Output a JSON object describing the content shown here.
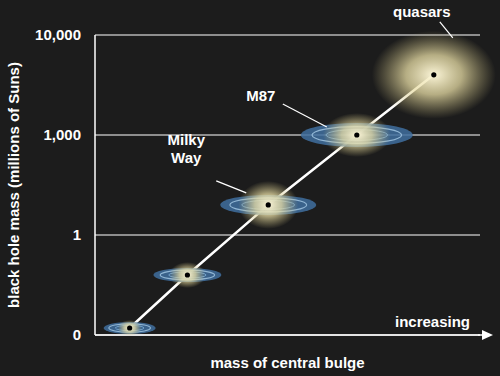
{
  "chart_data": {
    "type": "line",
    "x_label": "mass of central bulge",
    "y_label": "black hole mass (millions of Suns)",
    "annotations": [
      {
        "text": "increasing"
      }
    ],
    "x": [
      9,
      24,
      45,
      68,
      88
    ],
    "values": [
      0.07,
      0.6,
      8,
      1000,
      4000
    ],
    "point_labels": [
      null,
      null,
      "Milky Way",
      "M87",
      "quasars"
    ],
    "xlim": [
      0,
      100
    ],
    "ylim": [
      0,
      10000
    ],
    "yticks": [
      0,
      1,
      {
        "value": 1000,
        "label": "1,000"
      },
      {
        "value": 10000,
        "label": "10,000"
      }
    ],
    "grid": true,
    "tick_labels": "y",
    "color": "#ffffff",
    "marker": "galaxy"
  }
}
